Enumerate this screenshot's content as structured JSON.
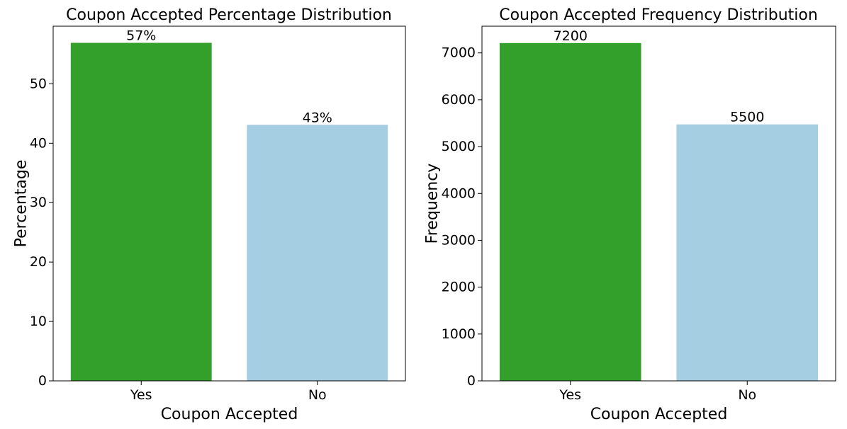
{
  "chart_data": [
    {
      "type": "bar",
      "title": "Coupon Accepted Percentage Distribution",
      "xlabel": "Coupon Accepted",
      "ylabel": "Percentage",
      "categories": [
        "Yes",
        "No"
      ],
      "values": [
        56.9,
        43.1
      ],
      "data_labels": [
        "57%",
        "43%"
      ],
      "colors": [
        "#33a02c",
        "#a6cee3"
      ],
      "ylim": [
        0,
        59.7
      ],
      "yticks": [
        0,
        10,
        20,
        30,
        40,
        50
      ],
      "grid": false,
      "legend": "none"
    },
    {
      "type": "bar",
      "title": "Coupon Accepted Frequency Distribution",
      "xlabel": "Coupon Accepted",
      "ylabel": "Frequency",
      "categories": [
        "Yes",
        "No"
      ],
      "values": [
        7210,
        5474
      ],
      "data_labels": [
        "7200",
        "5500"
      ],
      "colors": [
        "#33a02c",
        "#a6cee3"
      ],
      "ylim": [
        0,
        7570
      ],
      "yticks": [
        0,
        1000,
        2000,
        3000,
        4000,
        5000,
        6000,
        7000
      ],
      "grid": false,
      "legend": "none"
    }
  ]
}
